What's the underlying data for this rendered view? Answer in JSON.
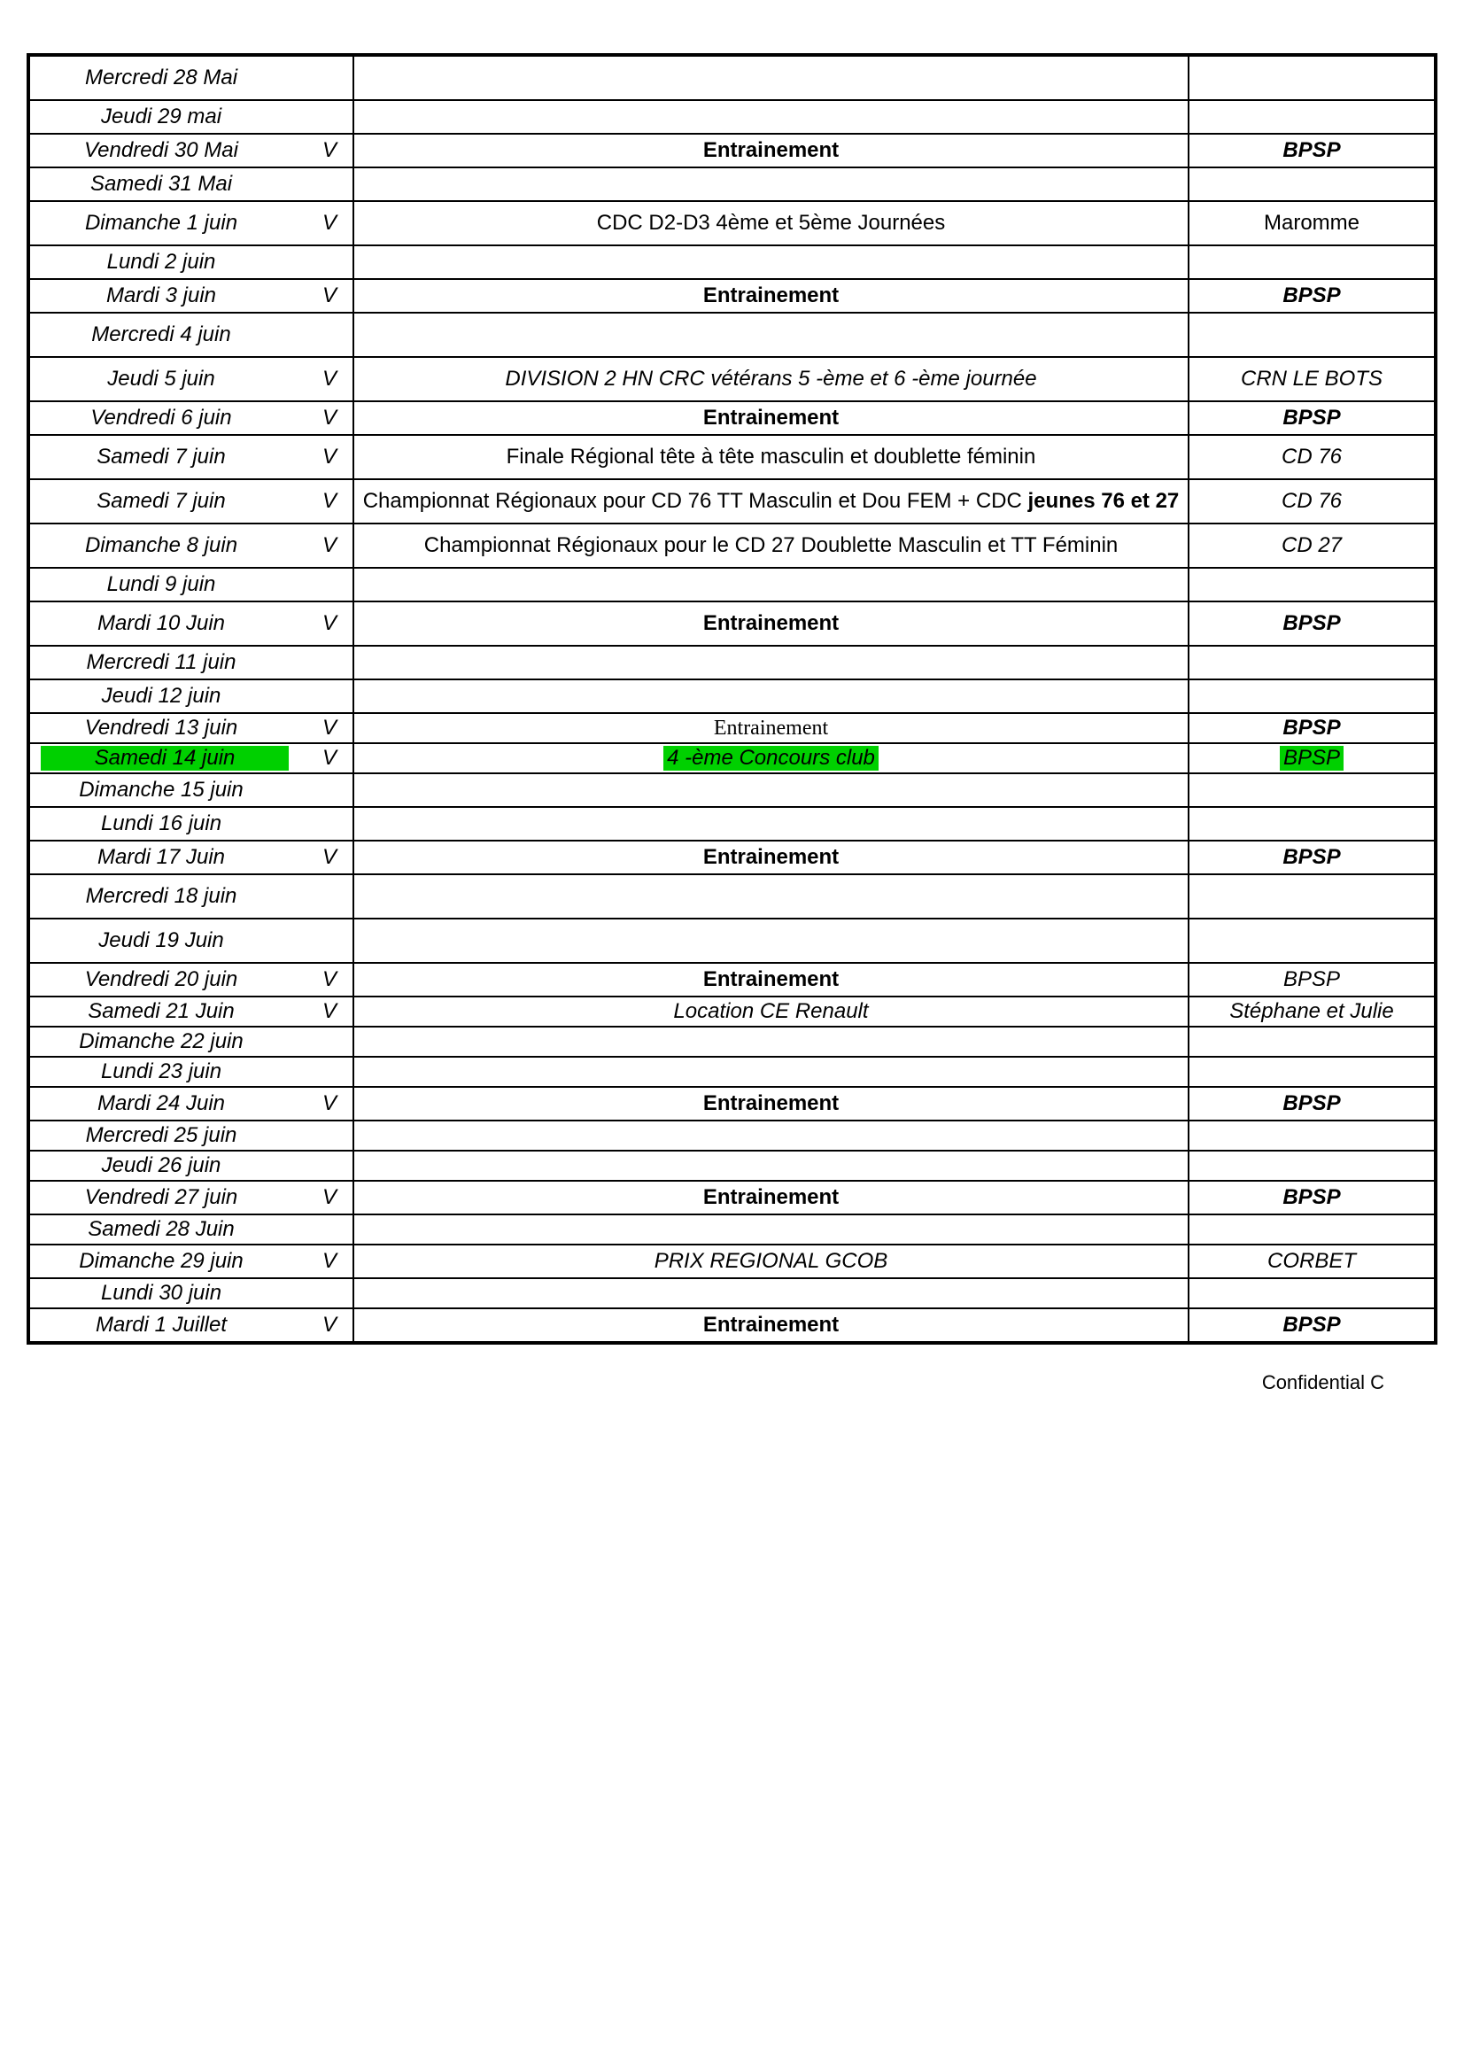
{
  "footer": "Confidential C",
  "highlight_color": "#00d000",
  "rows": [
    {
      "date": "Mercredi 28 Mai",
      "marker": "",
      "event": "",
      "event_bold": false,
      "event_italic": false,
      "event_hl": false,
      "loc": "",
      "loc_bold": false,
      "loc_italic": false,
      "loc_hl": false,
      "date_hl": false,
      "rh": "tall"
    },
    {
      "date": "Jeudi 29 mai",
      "marker": "",
      "event": "",
      "event_bold": false,
      "event_italic": false,
      "event_hl": false,
      "loc": "",
      "loc_bold": false,
      "loc_italic": false,
      "loc_hl": false,
      "date_hl": false,
      "rh": ""
    },
    {
      "date": "Vendredi 30 Mai",
      "marker": "V",
      "event": "Entrainement",
      "event_bold": true,
      "event_italic": false,
      "event_hl": false,
      "loc": "BPSP",
      "loc_bold": true,
      "loc_italic": true,
      "loc_hl": false,
      "date_hl": false,
      "rh": ""
    },
    {
      "date": "Samedi 31 Mai",
      "marker": "",
      "event": "",
      "event_bold": false,
      "event_italic": false,
      "event_hl": false,
      "loc": "",
      "loc_bold": false,
      "loc_italic": false,
      "loc_hl": false,
      "date_hl": false,
      "rh": ""
    },
    {
      "date": "Dimanche 1 juin",
      "marker": "V",
      "event": "CDC D2-D3 4ème et 5ème Journées",
      "event_bold": false,
      "event_italic": false,
      "event_hl": false,
      "loc": "Maromme",
      "loc_bold": false,
      "loc_italic": false,
      "loc_hl": false,
      "date_hl": false,
      "rh": "tall"
    },
    {
      "date": "Lundi 2 juin",
      "marker": "",
      "event": "",
      "event_bold": false,
      "event_italic": false,
      "event_hl": false,
      "loc": "",
      "loc_bold": false,
      "loc_italic": false,
      "loc_hl": false,
      "date_hl": false,
      "rh": ""
    },
    {
      "date": "Mardi 3 juin",
      "marker": "V",
      "event": "Entrainement",
      "event_bold": true,
      "event_italic": false,
      "event_hl": false,
      "loc": "BPSP",
      "loc_bold": true,
      "loc_italic": true,
      "loc_hl": false,
      "date_hl": false,
      "rh": ""
    },
    {
      "date": "Mercredi 4 juin",
      "marker": "",
      "event": "",
      "event_bold": false,
      "event_italic": false,
      "event_hl": false,
      "loc": "",
      "loc_bold": false,
      "loc_italic": false,
      "loc_hl": false,
      "date_hl": false,
      "rh": "tall"
    },
    {
      "date": "Jeudi 5 juin",
      "marker": "V",
      "event": "DIVISION 2 HN CRC vétérans 5 -ème et 6 -ème journée",
      "event_bold": false,
      "event_italic": true,
      "event_hl": false,
      "loc": "CRN LE BOTS",
      "loc_bold": false,
      "loc_italic": true,
      "loc_hl": false,
      "date_hl": false,
      "rh": "tall"
    },
    {
      "date": "Vendredi 6 juin",
      "marker": "V",
      "event": "Entrainement",
      "event_bold": true,
      "event_italic": false,
      "event_hl": false,
      "loc": "BPSP",
      "loc_bold": true,
      "loc_italic": true,
      "loc_hl": false,
      "date_hl": false,
      "rh": ""
    },
    {
      "date": "Samedi 7 juin",
      "marker": "V",
      "event": "Finale Régional tête à tête masculin et doublette féminin",
      "event_bold": false,
      "event_italic": false,
      "event_hl": false,
      "loc": "CD 76",
      "loc_bold": false,
      "loc_italic": true,
      "loc_hl": false,
      "date_hl": false,
      "rh": "tall"
    },
    {
      "date": "Samedi 7 juin",
      "marker": "V",
      "event_html": "Championnat Régionaux pour CD 76 TT Masculin et Dou FEM + CDC <b>jeunes 76 et 27</b>",
      "event_bold": false,
      "event_italic": false,
      "event_hl": false,
      "loc": "CD 76",
      "loc_bold": false,
      "loc_italic": true,
      "loc_hl": false,
      "date_hl": false,
      "rh": "tall"
    },
    {
      "date": "Dimanche 8 juin",
      "marker": "V",
      "event": "Championnat Régionaux pour le CD 27 Doublette Masculin et TT Féminin",
      "event_bold": false,
      "event_italic": false,
      "event_hl": false,
      "loc": "CD 27",
      "loc_bold": false,
      "loc_italic": true,
      "loc_hl": false,
      "date_hl": false,
      "rh": "tall"
    },
    {
      "date": "Lundi 9 juin",
      "marker": "",
      "event": "",
      "event_bold": false,
      "event_italic": false,
      "event_hl": false,
      "loc": "",
      "loc_bold": false,
      "loc_italic": false,
      "loc_hl": false,
      "date_hl": false,
      "rh": ""
    },
    {
      "date": "Mardi 10 Juin",
      "marker": "V",
      "event": "Entrainement",
      "event_bold": true,
      "event_italic": false,
      "event_hl": false,
      "loc": "BPSP",
      "loc_bold": true,
      "loc_italic": true,
      "loc_hl": false,
      "date_hl": false,
      "rh": "tall"
    },
    {
      "date": "Mercredi 11 juin",
      "marker": "",
      "event": "",
      "event_bold": false,
      "event_italic": false,
      "event_hl": false,
      "loc": "",
      "loc_bold": false,
      "loc_italic": false,
      "loc_hl": false,
      "date_hl": false,
      "rh": ""
    },
    {
      "date": "Jeudi 12 juin",
      "marker": "",
      "event": "",
      "event_bold": false,
      "event_italic": false,
      "event_hl": false,
      "loc": "",
      "loc_bold": false,
      "loc_italic": false,
      "loc_hl": false,
      "date_hl": false,
      "rh": ""
    },
    {
      "date": "Vendredi 13 juin",
      "marker": "V",
      "event": "Entrainement",
      "event_bold": false,
      "event_italic": false,
      "event_hl": false,
      "event_serif": true,
      "loc": "BPSP",
      "loc_bold": true,
      "loc_italic": true,
      "loc_hl": false,
      "date_hl": false,
      "rh": "short"
    },
    {
      "date": "Samedi 14 juin",
      "marker": "V",
      "event": "4 -ème Concours club",
      "event_bold": false,
      "event_italic": true,
      "event_hl": true,
      "loc": "BPSP",
      "loc_bold": false,
      "loc_italic": true,
      "loc_hl": true,
      "date_hl": true,
      "rh": "short"
    },
    {
      "date": "Dimanche 15 juin",
      "marker": "",
      "event": "",
      "event_bold": false,
      "event_italic": false,
      "event_hl": false,
      "loc": "",
      "loc_bold": false,
      "loc_italic": false,
      "loc_hl": false,
      "date_hl": false,
      "rh": ""
    },
    {
      "date": "Lundi 16 juin",
      "marker": "",
      "event": "",
      "event_bold": false,
      "event_italic": false,
      "event_hl": false,
      "loc": "",
      "loc_bold": false,
      "loc_italic": false,
      "loc_hl": false,
      "date_hl": false,
      "rh": ""
    },
    {
      "date": "Mardi 17 Juin",
      "marker": "V",
      "event": "Entrainement",
      "event_bold": true,
      "event_italic": false,
      "event_hl": false,
      "loc": "BPSP",
      "loc_bold": true,
      "loc_italic": true,
      "loc_hl": false,
      "date_hl": false,
      "rh": ""
    },
    {
      "date": "Mercredi 18 juin",
      "marker": "",
      "event": "",
      "event_bold": false,
      "event_italic": false,
      "event_hl": false,
      "loc": "",
      "loc_bold": false,
      "loc_italic": false,
      "loc_hl": false,
      "date_hl": false,
      "rh": "tall"
    },
    {
      "date": "Jeudi 19 Juin",
      "marker": "",
      "event": "",
      "event_bold": false,
      "event_italic": false,
      "event_hl": false,
      "loc": "",
      "loc_bold": false,
      "loc_italic": false,
      "loc_hl": false,
      "date_hl": false,
      "rh": "tall"
    },
    {
      "date": "Vendredi 20 juin",
      "marker": "V",
      "event": "Entrainement",
      "event_bold": true,
      "event_italic": false,
      "event_hl": false,
      "loc": "BPSP",
      "loc_bold": false,
      "loc_italic": true,
      "loc_hl": false,
      "date_hl": false,
      "rh": ""
    },
    {
      "date": "Samedi 21 Juin",
      "marker": "V",
      "event": "Location CE Renault",
      "event_bold": false,
      "event_italic": true,
      "event_hl": false,
      "loc": "Stéphane et Julie",
      "loc_bold": false,
      "loc_italic": true,
      "loc_hl": false,
      "date_hl": false,
      "rh": "short"
    },
    {
      "date": "Dimanche 22 juin",
      "marker": "",
      "event": "",
      "event_bold": false,
      "event_italic": false,
      "event_hl": false,
      "loc": "",
      "loc_bold": false,
      "loc_italic": false,
      "loc_hl": false,
      "date_hl": false,
      "rh": "short"
    },
    {
      "date": "Lundi 23 juin",
      "marker": "",
      "event": "",
      "event_bold": false,
      "event_italic": false,
      "event_hl": false,
      "loc": "",
      "loc_bold": false,
      "loc_italic": false,
      "loc_hl": false,
      "date_hl": false,
      "rh": "short"
    },
    {
      "date": "Mardi 24 Juin",
      "marker": "V",
      "event": "Entrainement",
      "event_bold": true,
      "event_italic": false,
      "event_hl": false,
      "loc": "BPSP",
      "loc_bold": true,
      "loc_italic": true,
      "loc_hl": false,
      "date_hl": false,
      "rh": ""
    },
    {
      "date": "Mercredi 25 juin",
      "marker": "",
      "event": "",
      "event_bold": false,
      "event_italic": false,
      "event_hl": false,
      "loc": "",
      "loc_bold": false,
      "loc_italic": false,
      "loc_hl": false,
      "date_hl": false,
      "rh": "short"
    },
    {
      "date": "Jeudi 26 juin",
      "marker": "",
      "event": "",
      "event_bold": false,
      "event_italic": false,
      "event_hl": false,
      "loc": "",
      "loc_bold": false,
      "loc_italic": false,
      "loc_hl": false,
      "date_hl": false,
      "rh": "short"
    },
    {
      "date": "Vendredi 27 juin",
      "marker": "V",
      "event": "Entrainement",
      "event_bold": true,
      "event_italic": false,
      "event_hl": false,
      "loc": "BPSP",
      "loc_bold": true,
      "loc_italic": true,
      "loc_hl": false,
      "date_hl": false,
      "rh": ""
    },
    {
      "date": "Samedi 28 Juin",
      "marker": "",
      "event": "",
      "event_bold": false,
      "event_italic": false,
      "event_hl": false,
      "loc": "",
      "loc_bold": false,
      "loc_italic": false,
      "loc_hl": false,
      "date_hl": false,
      "rh": "short"
    },
    {
      "date": "Dimanche 29 juin",
      "marker": "V",
      "event": "PRIX REGIONAL GCOB",
      "event_bold": false,
      "event_italic": true,
      "event_hl": false,
      "loc": "CORBET",
      "loc_bold": false,
      "loc_italic": true,
      "loc_hl": false,
      "date_hl": false,
      "rh": ""
    },
    {
      "date": "Lundi 30 juin",
      "marker": "",
      "event": "",
      "event_bold": false,
      "event_italic": false,
      "event_hl": false,
      "loc": "",
      "loc_bold": false,
      "loc_italic": false,
      "loc_hl": false,
      "date_hl": false,
      "rh": "short"
    },
    {
      "date": "Mardi 1 Juillet",
      "marker": "V",
      "event": "Entrainement",
      "event_bold": true,
      "event_italic": false,
      "event_hl": false,
      "loc": "BPSP",
      "loc_bold": true,
      "loc_italic": true,
      "loc_hl": false,
      "date_hl": false,
      "rh": ""
    }
  ]
}
